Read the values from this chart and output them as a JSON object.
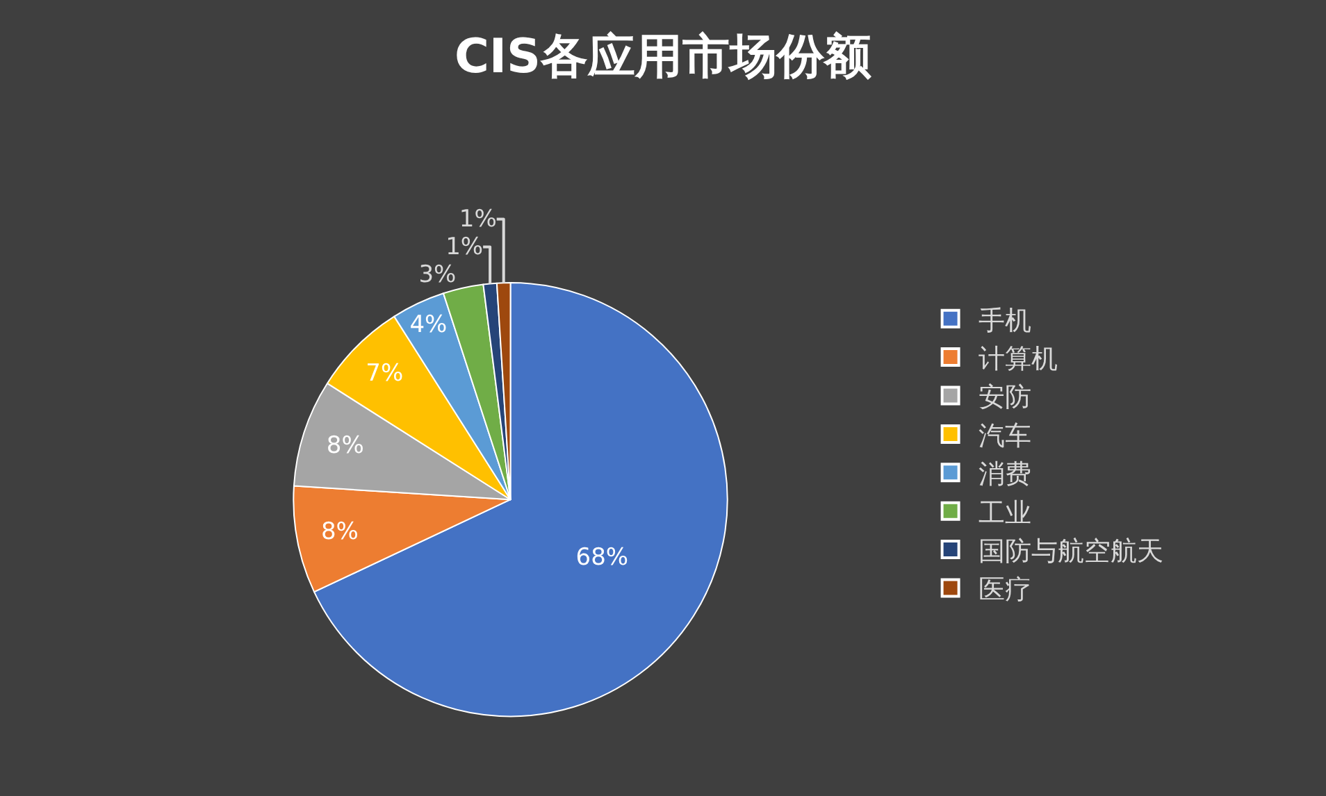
{
  "chart_data": {
    "type": "pie",
    "title": "CIS各应用市场份额",
    "categories": [
      "手机",
      "计算机",
      "安防",
      "汽车",
      "消费",
      "工业",
      "国防与航空航天",
      "医疗"
    ],
    "values": [
      68,
      8,
      8,
      7,
      4,
      3,
      1,
      1
    ],
    "colors": [
      "#4472c4",
      "#ed7d31",
      "#a5a5a5",
      "#ffc000",
      "#5b9bd5",
      "#70ad47",
      "#264478",
      "#9e480e"
    ],
    "value_labels": [
      "68%",
      "8%",
      "8%",
      "7%",
      "4%",
      "3%",
      "1%",
      "1%"
    ],
    "legend": "right"
  }
}
